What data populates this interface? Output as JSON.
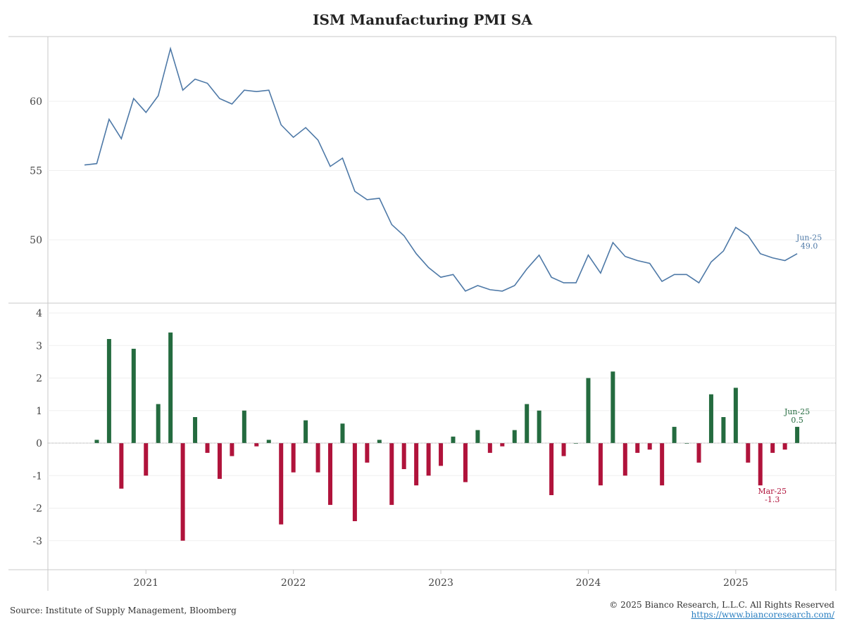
{
  "chart_data": [
    {
      "type": "line",
      "title": "ISM Manufacturing PMI SA",
      "x_start": "Aug-20",
      "x_end": "Jun-25",
      "frequency": "monthly",
      "yticks": [
        50,
        55,
        60
      ],
      "ylim": [
        45.5,
        65
      ],
      "color": "#4e79a7",
      "values": [
        55.4,
        55.5,
        58.7,
        57.3,
        60.2,
        59.2,
        60.4,
        63.8,
        60.8,
        61.6,
        61.3,
        60.2,
        59.8,
        60.8,
        60.7,
        60.8,
        58.3,
        57.4,
        58.1,
        57.2,
        55.3,
        55.9,
        53.5,
        52.9,
        53.0,
        51.1,
        50.3,
        49.0,
        48.0,
        47.3,
        47.5,
        46.3,
        46.7,
        46.4,
        46.3,
        46.7,
        47.9,
        48.9,
        47.3,
        46.9,
        46.9,
        48.9,
        47.6,
        49.8,
        48.8,
        48.5,
        48.3,
        47.0,
        47.5,
        47.5,
        46.9,
        48.4,
        49.2,
        50.9,
        50.3,
        49.0,
        48.7,
        48.5,
        49.0
      ],
      "annotation": {
        "label": "Jun-25",
        "value": "49.0"
      }
    },
    {
      "type": "bar",
      "x_start": "Sep-20",
      "yticks": [
        -3,
        -2,
        -1,
        0,
        1,
        2,
        3,
        4
      ],
      "ylim": [
        -3.9,
        4.3
      ],
      "positive_color": "#246b3f",
      "negative_color": "#b0133b",
      "values": [
        0.1,
        3.2,
        -1.4,
        2.9,
        -1.0,
        1.2,
        3.4,
        -3.0,
        0.8,
        -0.3,
        -1.1,
        -0.4,
        1.0,
        -0.1,
        0.1,
        -2.5,
        -0.9,
        0.7,
        -0.9,
        -1.9,
        0.6,
        -2.4,
        -0.6,
        0.1,
        -1.9,
        -0.8,
        -1.3,
        -1.0,
        -0.7,
        0.2,
        -1.2,
        0.4,
        -0.3,
        -0.1,
        0.4,
        1.2,
        1.0,
        -1.6,
        -0.4,
        0.0,
        2.0,
        -1.3,
        2.2,
        -1.0,
        -0.3,
        -0.2,
        -1.3,
        0.5,
        0.0,
        -0.6,
        1.5,
        0.8,
        1.7,
        -0.6,
        -1.3,
        -0.3,
        -0.2,
        0.5
      ],
      "annotations": [
        {
          "label": "Jun-25",
          "value": "0.5"
        },
        {
          "label": "Mar-25",
          "value": "-1.3"
        }
      ]
    }
  ],
  "xaxis": {
    "tick_labels": [
      "2021",
      "2022",
      "2023",
      "2024",
      "2025"
    ]
  },
  "footer": {
    "source": "Source: Institute of Supply Management, Bloomberg",
    "copyright": "© 2025 Bianco Research, L.L.C. All Rights Reserved",
    "link": "https://www.biancoresearch.com/"
  }
}
